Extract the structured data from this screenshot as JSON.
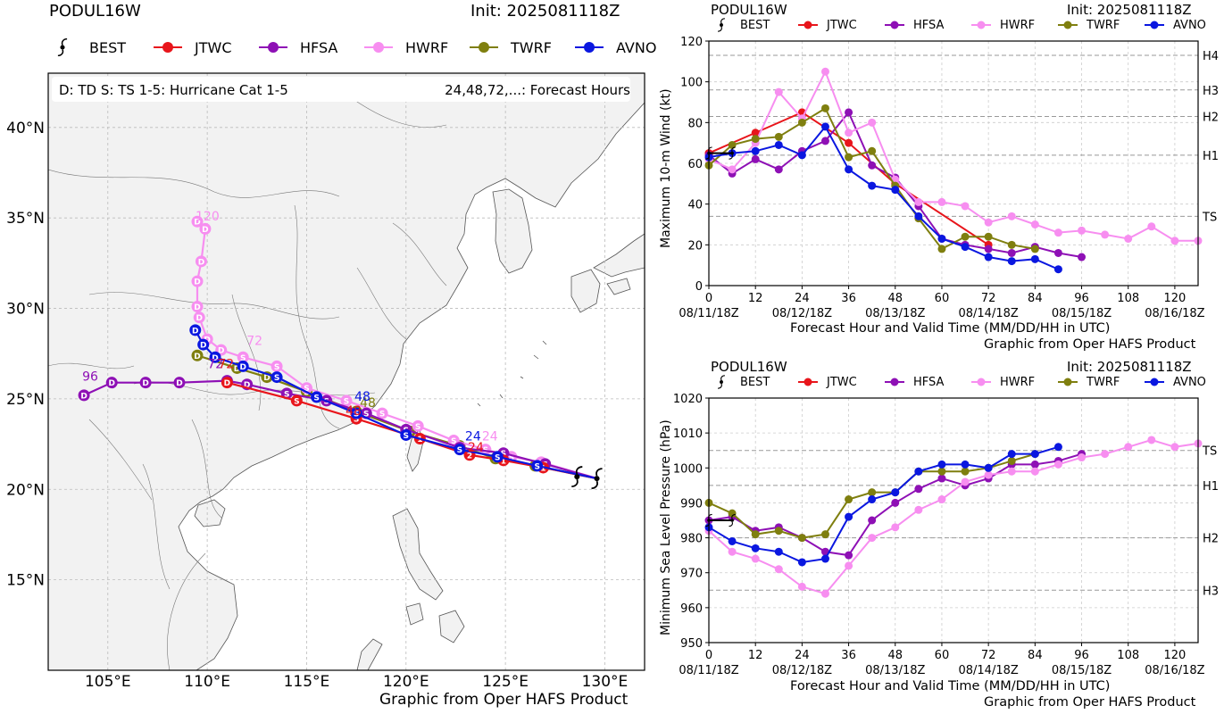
{
  "colors": {
    "BEST": "#000000",
    "JTWC": "#e8151b",
    "HFSA": "#8e10b5",
    "HWRF": "#f78ef0",
    "TWRF": "#7f7f0f",
    "AVNO": "#0a17e0"
  },
  "map": {
    "storm": "PODUL16W",
    "init": "Init: 2025081118Z",
    "legend": [
      "BEST",
      "JTWC",
      "HFSA",
      "HWRF",
      "TWRF",
      "AVNO"
    ],
    "key_left": "D: TD  S: TS  1-5: Hurricane Cat 1-5",
    "key_right": "24,48,72,...: Forecast Hours",
    "credit": "Graphic from Oper HAFS Product",
    "lat_labels": [
      "40°N",
      "35°N",
      "30°N",
      "25°N",
      "20°N",
      "15°N"
    ],
    "lon_labels": [
      "105°E",
      "110°E",
      "115°E",
      "120°E",
      "125°E",
      "130°E"
    ],
    "track_labels": {
      "hfsa96": "96",
      "hfsa72": "72",
      "jtwc72": "72",
      "hwrf72": "72",
      "hwrf120": "120",
      "j48": "48",
      "a48": "48",
      "t48": "48",
      "j24": "24",
      "a24": "24",
      "h24": "24"
    }
  },
  "wind_panel": {
    "storm": "PODUL16W",
    "init": "Init: 2025081118Z",
    "legend": [
      "BEST",
      "JTWC",
      "HFSA",
      "HWRF",
      "TWRF",
      "AVNO"
    ],
    "ylabel": "Maximum 10-m Wind (kt)",
    "xlabel": "Forecast Hour and Valid Time (MM/DD/HH in UTC)",
    "credit": "Graphic from Oper HAFS Product",
    "x_ticks": [
      "0",
      "12",
      "24",
      "36",
      "48",
      "60",
      "72",
      "84",
      "96",
      "108",
      "120"
    ],
    "date_ticks": [
      "08/11/18Z",
      "08/12/18Z",
      "08/13/18Z",
      "08/14/18Z",
      "08/15/18Z",
      "08/16/18Z"
    ],
    "y_ticks": [
      "0",
      "20",
      "40",
      "60",
      "80",
      "100",
      "120"
    ],
    "categories": [
      "TS",
      "H1",
      "H2",
      "H3",
      "H4"
    ]
  },
  "pres_panel": {
    "storm": "PODUL16W",
    "init": "Init: 2025081118Z",
    "legend": [
      "BEST",
      "JTWC",
      "HFSA",
      "HWRF",
      "TWRF",
      "AVNO"
    ],
    "ylabel": "Minimum Sea Level Pressure (hPa)",
    "xlabel": "Forecast Hour and Valid Time (MM/DD/HH in UTC)",
    "credit": "Graphic from Oper HAFS Product",
    "x_ticks": [
      "0",
      "12",
      "24",
      "36",
      "48",
      "60",
      "72",
      "84",
      "96",
      "108",
      "120"
    ],
    "date_ticks": [
      "08/11/18Z",
      "08/12/18Z",
      "08/13/18Z",
      "08/14/18Z",
      "08/15/18Z",
      "08/16/18Z"
    ],
    "y_ticks": [
      "950",
      "960",
      "970",
      "980",
      "990",
      "1000",
      "1010",
      "1020"
    ],
    "categories": [
      "TS",
      "H1",
      "H2",
      "H3"
    ]
  },
  "chart_data": [
    {
      "type": "line",
      "title": "PODUL16W",
      "xlabel": "Forecast Hour and Valid Time (MM/DD/HH in UTC)",
      "ylabel": "Maximum 10-m Wind (kt)",
      "xlim": [
        0,
        126
      ],
      "ylim": [
        0,
        120
      ],
      "thresholds": [
        {
          "label": "TS",
          "value": 34
        },
        {
          "label": "H1",
          "value": 64
        },
        {
          "label": "H2",
          "value": 83
        },
        {
          "label": "H3",
          "value": 96
        },
        {
          "label": "H4",
          "value": 113
        }
      ],
      "series": [
        {
          "name": "BEST",
          "x": [
            0,
            6
          ],
          "y": [
            65,
            65
          ]
        },
        {
          "name": "JTWC",
          "x": [
            0,
            12,
            24,
            36,
            48,
            72
          ],
          "y": [
            65,
            75,
            85,
            70,
            50,
            20
          ]
        },
        {
          "name": "HFSA",
          "x": [
            0,
            6,
            12,
            18,
            24,
            30,
            36,
            42,
            48,
            54,
            60,
            66,
            72,
            78,
            84,
            90,
            96
          ],
          "y": [
            64,
            55,
            62,
            57,
            66,
            71,
            85,
            59,
            53,
            39,
            23,
            20,
            18,
            16,
            19,
            16,
            14
          ]
        },
        {
          "name": "HWRF",
          "x": [
            0,
            6,
            12,
            18,
            24,
            30,
            36,
            42,
            48,
            54,
            60,
            66,
            72,
            78,
            84,
            90,
            96,
            102,
            108,
            114,
            120,
            126
          ],
          "y": [
            62,
            57,
            70,
            95,
            82,
            105,
            75,
            80,
            52,
            41,
            41,
            39,
            31,
            34,
            30,
            26,
            27,
            25,
            23,
            29,
            22,
            22
          ]
        },
        {
          "name": "TWRF",
          "x": [
            0,
            6,
            12,
            18,
            24,
            30,
            36,
            42,
            48,
            54,
            60,
            66,
            72,
            78,
            84
          ],
          "y": [
            59,
            69,
            72,
            73,
            80,
            87,
            63,
            66,
            49,
            33,
            18,
            24,
            24,
            20,
            18
          ]
        },
        {
          "name": "AVNO",
          "x": [
            0,
            6,
            12,
            18,
            24,
            30,
            36,
            42,
            48,
            54,
            60,
            66,
            72,
            78,
            84,
            90
          ],
          "y": [
            63,
            65,
            66,
            69,
            64,
            78,
            57,
            49,
            47,
            34,
            23,
            19,
            14,
            12,
            13,
            8
          ]
        }
      ]
    },
    {
      "type": "line",
      "title": "PODUL16W",
      "xlabel": "Forecast Hour and Valid Time (MM/DD/HH in UTC)",
      "ylabel": "Minimum Sea Level Pressure (hPa)",
      "xlim": [
        0,
        126
      ],
      "ylim": [
        950,
        1020
      ],
      "thresholds": [
        {
          "label": "TS",
          "value": 1005
        },
        {
          "label": "H1",
          "value": 995
        },
        {
          "label": "H2",
          "value": 980
        },
        {
          "label": "H3",
          "value": 965
        }
      ],
      "series": [
        {
          "name": "BEST",
          "x": [
            0,
            6
          ],
          "y": [
            985,
            985
          ]
        },
        {
          "name": "HFSA",
          "x": [
            0,
            6,
            12,
            18,
            24,
            30,
            36,
            42,
            48,
            54,
            60,
            66,
            72,
            78,
            84,
            90,
            96
          ],
          "y": [
            985,
            986,
            982,
            983,
            980,
            976,
            975,
            985,
            990,
            994,
            997,
            995,
            997,
            1001,
            1001,
            1002,
            1004
          ]
        },
        {
          "name": "HWRF",
          "x": [
            0,
            6,
            12,
            18,
            24,
            30,
            36,
            42,
            48,
            54,
            60,
            66,
            72,
            78,
            84,
            90,
            96,
            102,
            108,
            114,
            120,
            126
          ],
          "y": [
            982,
            976,
            974,
            971,
            966,
            964,
            972,
            980,
            983,
            988,
            991,
            996,
            998,
            999,
            999,
            1001,
            1003,
            1004,
            1006,
            1008,
            1006,
            1007
          ]
        },
        {
          "name": "TWRF",
          "x": [
            0,
            6,
            12,
            18,
            24,
            30,
            36,
            42,
            48,
            54,
            60,
            66,
            72,
            78,
            84
          ],
          "y": [
            990,
            987,
            981,
            982,
            980,
            981,
            991,
            993,
            993,
            999,
            999,
            999,
            1000,
            1002,
            1004
          ]
        },
        {
          "name": "AVNO",
          "x": [
            0,
            6,
            12,
            18,
            24,
            30,
            36,
            42,
            48,
            54,
            60,
            66,
            72,
            78,
            84,
            90
          ],
          "y": [
            983,
            979,
            977,
            976,
            973,
            974,
            986,
            991,
            993,
            999,
            1001,
            1001,
            1000,
            1004,
            1004,
            1006
          ]
        }
      ]
    },
    {
      "type": "scatter",
      "title": "PODUL16W",
      "description_axes": "longitude (°E) vs latitude (°N)",
      "xlim": [
        102,
        132
      ],
      "ylim": [
        10,
        43
      ],
      "series": [
        {
          "name": "BEST",
          "lon": [
            128.6,
            129.6
          ],
          "lat": [
            20.7,
            20.6
          ]
        },
        {
          "name": "JTWC",
          "lon": [
            129.6,
            126.9,
            124.9,
            123.2,
            120.7,
            117.5,
            114.5,
            111.0
          ],
          "lat": [
            20.6,
            21.2,
            21.6,
            21.9,
            22.8,
            23.9,
            24.9,
            25.9
          ],
          "marks": [
            "",
            "1",
            "1",
            "2",
            "1",
            "S",
            "S",
            "D"
          ]
        },
        {
          "name": "HFSA",
          "lon": [
            129.6,
            127.0,
            124.9,
            122.7,
            120.0,
            118.0,
            116.0,
            114.0,
            112.0,
            111.0,
            108.6,
            106.9,
            105.2,
            103.8
          ],
          "lat": [
            20.6,
            21.4,
            22.0,
            22.3,
            23.3,
            24.2,
            24.9,
            25.3,
            25.8,
            26.0,
            25.9,
            25.9,
            25.9,
            25.2
          ],
          "marks": [
            "",
            "S",
            "S",
            "S",
            "S",
            "S",
            "S",
            "S",
            "D",
            "D",
            "D",
            "D",
            "D",
            "D"
          ]
        },
        {
          "name": "HWRF",
          "lon": [
            129.6,
            126.8,
            125.3,
            124.0,
            122.4,
            120.6,
            118.8,
            117.0,
            115.0,
            113.5,
            111.8,
            110.7,
            110.0,
            109.6,
            109.5,
            109.5,
            109.7,
            109.9,
            109.5
          ],
          "lat": [
            20.6,
            21.5,
            21.8,
            22.2,
            22.7,
            23.5,
            24.2,
            24.9,
            25.6,
            26.8,
            27.3,
            27.7,
            28.3,
            29.5,
            30.1,
            31.5,
            32.6,
            34.4,
            34.8
          ],
          "marks": [
            "",
            "S",
            "S",
            "S",
            "S",
            "S",
            "S",
            "S",
            "S",
            "S",
            "S",
            "D",
            "D",
            "D",
            "D",
            "D",
            "D",
            "D",
            "D"
          ]
        },
        {
          "name": "TWRF",
          "lon": [
            129.6,
            126.5,
            124.5,
            122.7,
            120.2,
            117.5,
            115.0,
            113.0,
            111.5,
            109.5
          ],
          "lat": [
            20.6,
            21.3,
            21.7,
            22.4,
            23.2,
            24.3,
            25.4,
            26.2,
            26.7,
            27.4
          ],
          "marks": [
            "",
            "S",
            "S",
            "S",
            "S",
            "S",
            "S",
            "D",
            "D",
            "D"
          ]
        },
        {
          "name": "AVNO",
          "lon": [
            129.6,
            126.6,
            124.6,
            122.7,
            120.0,
            117.5,
            115.5,
            113.5,
            111.8,
            110.4,
            109.8,
            109.4
          ],
          "lat": [
            20.6,
            21.3,
            21.8,
            22.2,
            23.0,
            24.2,
            25.1,
            26.2,
            26.8,
            27.3,
            28.0,
            28.8
          ],
          "marks": [
            "",
            "S",
            "S",
            "S",
            "S",
            "S",
            "S",
            "S",
            "D",
            "D",
            "D",
            "D"
          ]
        }
      ]
    }
  ]
}
